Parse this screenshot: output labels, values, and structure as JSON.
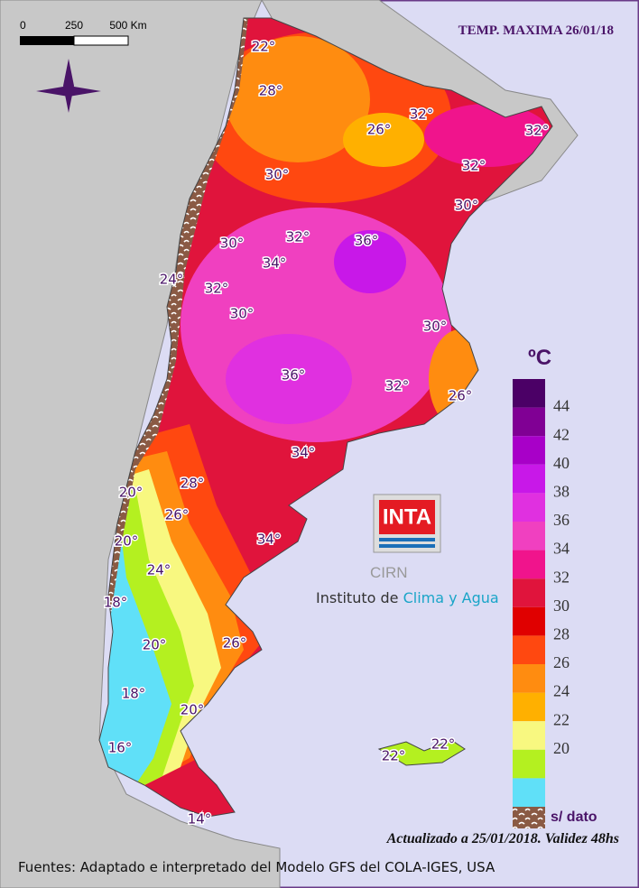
{
  "header": {
    "title": "TEMP. MAXIMA 26/01/18"
  },
  "scale_bar": {
    "labels": [
      "0",
      "250",
      "500 Km"
    ]
  },
  "legend": {
    "unit": "ºC",
    "labels": [
      "44",
      "42",
      "40",
      "38",
      "36",
      "34",
      "32",
      "30",
      "28",
      "26",
      "24",
      "22",
      "20"
    ],
    "colors": [
      "#4b0066",
      "#800094",
      "#a800c8",
      "#c818e8",
      "#e030e0",
      "#f040c0",
      "#f0148c",
      "#e0143c",
      "#e00000",
      "#ff4810",
      "#ff8c10",
      "#ffb000",
      "#f8f880",
      "#b4f020",
      "#60e0f8"
    ],
    "no_data": "s/ dato"
  },
  "map_labels": [
    "22°",
    "28°",
    "32°",
    "26°",
    "32°",
    "32°",
    "30°",
    "30°",
    "32°",
    "36°",
    "30°",
    "34°",
    "24°",
    "32°",
    "30°",
    "30°",
    "36°",
    "32°",
    "26°",
    "34°",
    "28°",
    "20°",
    "26°",
    "34°",
    "20°",
    "24°",
    "18°",
    "20°",
    "26°",
    "18°",
    "20°",
    "16°",
    "22°",
    "22°",
    "14°"
  ],
  "logo": {
    "name": "INTA",
    "sub": "CIRN",
    "institute": "Instituto de",
    "highlight": "Clima y Agua"
  },
  "footer": {
    "updated": "Actualizado a 25/01/2018. Validez 48hs",
    "sources": "Fuentes: Adaptado e interpretado del Modelo GFS del COLA-IGES, USA"
  }
}
